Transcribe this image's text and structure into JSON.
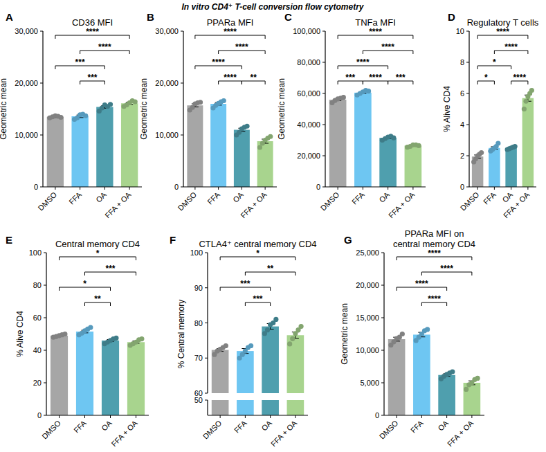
{
  "title": "In vitro CD4⁺ T-cell conversion flow cytometry",
  "chart_data": [
    {
      "type": "bar",
      "panel": "A",
      "title": "CD36 MFI",
      "y_label": "Geometric mean",
      "categories": [
        "DMSO",
        "FFA",
        "OA",
        "FFA + OA"
      ],
      "values": [
        13500,
        13600,
        15400,
        16100
      ],
      "errors": [
        150,
        250,
        250,
        200
      ],
      "points": [
        [
          13300,
          13500,
          13700,
          13600,
          13400
        ],
        [
          13000,
          13300,
          13900,
          14000,
          13700
        ],
        [
          14600,
          15200,
          15800,
          15500,
          15900
        ],
        [
          15500,
          15800,
          16200,
          16600,
          16400
        ]
      ],
      "colors": [
        "#a6a6a6",
        "#6ec6f2",
        "#4f9fae",
        "#a8d48e"
      ],
      "ylim": [
        0,
        30000
      ],
      "yticks": [
        0,
        {
          "value": 10000,
          "label": "10,000"
        },
        {
          "value": 20000,
          "label": "20,000"
        },
        {
          "value": 30000,
          "label": "30,000"
        }
      ],
      "significance": [
        {
          "from": 1,
          "to": 2,
          "label": "***"
        },
        {
          "from": 0,
          "to": 2,
          "label": "***"
        },
        {
          "from": 1,
          "to": 3,
          "label": "****"
        },
        {
          "from": 0,
          "to": 3,
          "label": "****"
        }
      ]
    },
    {
      "type": "bar",
      "panel": "B",
      "title": "PPARa MFI",
      "y_label": "Geometric mean",
      "categories": [
        "DMSO",
        "FFA",
        "OA",
        "FFA + OA"
      ],
      "values": [
        15700,
        16000,
        11000,
        8800
      ],
      "errors": [
        300,
        250,
        300,
        400
      ],
      "points": [
        [
          14800,
          15300,
          16000,
          16200,
          16300
        ],
        [
          15200,
          15700,
          16100,
          16400,
          16600
        ],
        [
          10000,
          10500,
          11200,
          11500,
          11700
        ],
        [
          7600,
          8400,
          9000,
          9400,
          9700
        ]
      ],
      "colors": [
        "#a6a6a6",
        "#6ec6f2",
        "#4f9fae",
        "#a8d48e"
      ],
      "ylim": [
        0,
        30000
      ],
      "yticks": [
        0,
        {
          "value": 10000,
          "label": "10,000"
        },
        {
          "value": 20000,
          "label": "20,000"
        },
        {
          "value": 30000,
          "label": "30,000"
        }
      ],
      "significance": [
        {
          "from": 2,
          "to": 3,
          "label": "**"
        },
        {
          "from": 1,
          "to": 2,
          "label": "****"
        },
        {
          "from": 0,
          "to": 2,
          "label": "****"
        },
        {
          "from": 1,
          "to": 3,
          "label": "****"
        },
        {
          "from": 0,
          "to": 3,
          "label": "****"
        }
      ]
    },
    {
      "type": "bar",
      "panel": "C",
      "title": "TNFa MFI",
      "y_label": "Geometric mean",
      "categories": [
        "DMSO",
        "FFA",
        "OA",
        "FFA + OA"
      ],
      "values": [
        56000,
        60500,
        31500,
        26500
      ],
      "errors": [
        600,
        500,
        500,
        300
      ],
      "points": [
        [
          54000,
          55500,
          56500,
          57000,
          57500
        ],
        [
          59000,
          60000,
          61000,
          62000,
          61500
        ],
        [
          30000,
          31000,
          32000,
          32500,
          31500
        ],
        [
          25500,
          26000,
          27000,
          27000,
          26500
        ]
      ],
      "colors": [
        "#a6a6a6",
        "#6ec6f2",
        "#4f9fae",
        "#a8d48e"
      ],
      "ylim": [
        0,
        100000
      ],
      "yticks": [
        0,
        {
          "value": 20000,
          "label": "20,000"
        },
        {
          "value": 40000,
          "label": "40,000"
        },
        {
          "value": 60000,
          "label": "60,000"
        },
        {
          "value": 80000,
          "label": "80,000"
        },
        {
          "value": 100000,
          "label": "100,000"
        }
      ],
      "significance": [
        {
          "from": 0,
          "to": 1,
          "label": "***"
        },
        {
          "from": 1,
          "to": 2,
          "label": "****"
        },
        {
          "from": 2,
          "to": 3,
          "label": "***"
        },
        {
          "from": 0,
          "to": 2,
          "label": "****"
        },
        {
          "from": 1,
          "to": 3,
          "label": "****"
        },
        {
          "from": 0,
          "to": 3,
          "label": "****"
        }
      ]
    },
    {
      "type": "bar",
      "panel": "D",
      "title": "Regulatory T cells",
      "y_label": "% Alive CD4",
      "categories": [
        "DMSO",
        "FFA",
        "OA",
        "FFA + OA"
      ],
      "values": [
        1.95,
        2.5,
        2.5,
        5.7
      ],
      "errors": [
        0.1,
        0.08,
        0.04,
        0.2
      ],
      "points": [
        [
          1.6,
          1.8,
          2.0,
          2.1,
          2.2
        ],
        [
          2.3,
          2.4,
          2.5,
          2.6,
          2.8
        ],
        [
          2.4,
          2.45,
          2.5,
          2.55,
          2.6
        ],
        [
          5.0,
          5.5,
          5.8,
          6.0,
          6.2
        ]
      ],
      "colors": [
        "#a6a6a6",
        "#6ec6f2",
        "#4f9fae",
        "#a8d48e"
      ],
      "ylim": [
        0,
        10
      ],
      "yticks": [
        0,
        2,
        4,
        6,
        8,
        10
      ],
      "significance": [
        {
          "from": 0,
          "to": 1,
          "label": "*"
        },
        {
          "from": 2,
          "to": 3,
          "label": "****"
        },
        {
          "from": 0,
          "to": 2,
          "label": "*"
        },
        {
          "from": 1,
          "to": 3,
          "label": "****"
        },
        {
          "from": 0,
          "to": 3,
          "label": "****"
        }
      ]
    },
    {
      "type": "bar",
      "panel": "E",
      "title": "Central memory CD4",
      "y_label": "% Alive CD4",
      "categories": [
        "DMSO",
        "FFA",
        "OA",
        "FFA + OA"
      ],
      "values": [
        49,
        51.5,
        46,
        45
      ],
      "errors": [
        0.4,
        0.8,
        0.6,
        0.7
      ],
      "points": [
        [
          48,
          48.5,
          49,
          49.5,
          50
        ],
        [
          49.5,
          50.5,
          52,
          53,
          54
        ],
        [
          44,
          45,
          46,
          47,
          47.5
        ],
        [
          43,
          44,
          45,
          46.5,
          47
        ]
      ],
      "colors": [
        "#a6a6a6",
        "#6ec6f2",
        "#4f9fae",
        "#a8d48e"
      ],
      "ylim": [
        0,
        100
      ],
      "yticks": [
        0,
        20,
        40,
        60,
        80,
        100
      ],
      "significance": [
        {
          "from": 1,
          "to": 2,
          "label": "**"
        },
        {
          "from": 0,
          "to": 2,
          "label": "*"
        },
        {
          "from": 1,
          "to": 3,
          "label": "***"
        },
        {
          "from": 0,
          "to": 3,
          "label": "*"
        }
      ]
    },
    {
      "type": "bar",
      "panel": "F",
      "title": "CTLA4⁺ central memory CD4",
      "y_label": "% Central memory",
      "categories": [
        "DMSO",
        "FFA",
        "OA",
        "FFA + OA"
      ],
      "values": [
        72.3,
        72,
        79,
        76.5
      ],
      "errors": [
        0.4,
        0.7,
        0.8,
        0.9
      ],
      "points": [
        [
          71,
          72,
          72.5,
          73,
          73.5
        ],
        [
          70,
          71,
          72,
          73,
          73.5
        ],
        [
          77,
          78,
          79.5,
          80,
          81
        ],
        [
          74,
          75.5,
          77,
          78,
          79
        ]
      ],
      "colors": [
        "#a6a6a6",
        "#6ec6f2",
        "#4f9fae",
        "#a8d48e"
      ],
      "ylim": [
        0,
        100
      ],
      "axis_break": [
        50,
        60
      ],
      "yticks": [
        50,
        60,
        70,
        80,
        90,
        100
      ],
      "significance": [
        {
          "from": 1,
          "to": 2,
          "label": "***"
        },
        {
          "from": 0,
          "to": 2,
          "label": "***"
        },
        {
          "from": 1,
          "to": 3,
          "label": "**"
        },
        {
          "from": 0,
          "to": 3,
          "label": "*"
        }
      ]
    },
    {
      "type": "bar",
      "panel": "G",
      "title": "PPARa MFI on\ncentral memory CD4",
      "y_label": "Geometric mean",
      "categories": [
        "DMSO",
        "FFA",
        "OA",
        "FFA + OA"
      ],
      "values": [
        11700,
        12400,
        6200,
        5000
      ],
      "errors": [
        300,
        350,
        200,
        300
      ],
      "points": [
        [
          10800,
          11300,
          11800,
          12000,
          12500
        ],
        [
          11500,
          12000,
          12500,
          13000,
          13200
        ],
        [
          5600,
          6000,
          6300,
          6500,
          6700
        ],
        [
          4000,
          4700,
          5000,
          5500,
          5700
        ]
      ],
      "colors": [
        "#a6a6a6",
        "#6ec6f2",
        "#4f9fae",
        "#a8d48e"
      ],
      "ylim": [
        0,
        25000
      ],
      "yticks": [
        0,
        {
          "value": 5000,
          "label": "5,000"
        },
        {
          "value": 10000,
          "label": "10,000"
        },
        {
          "value": 15000,
          "label": "15,000"
        },
        {
          "value": 20000,
          "label": "20,000"
        },
        {
          "value": 25000,
          "label": "25,000"
        }
      ],
      "significance": [
        {
          "from": 1,
          "to": 2,
          "label": "****"
        },
        {
          "from": 0,
          "to": 2,
          "label": "****"
        },
        {
          "from": 1,
          "to": 3,
          "label": "****"
        },
        {
          "from": 0,
          "to": 3,
          "label": "****"
        }
      ]
    }
  ]
}
